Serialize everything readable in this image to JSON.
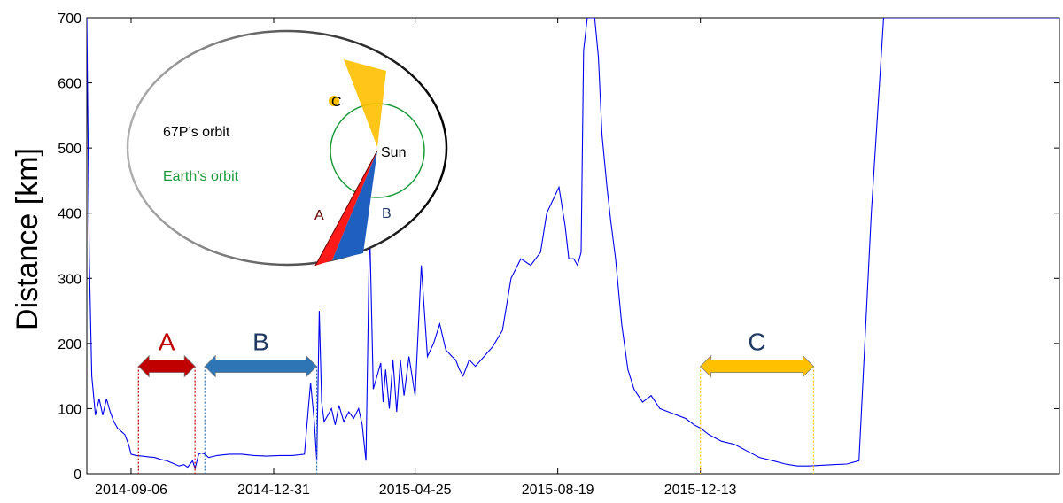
{
  "chart_data": {
    "type": "line",
    "title": "",
    "xlabel": "",
    "ylabel": "Distance [km]",
    "ylim": [
      0,
      700
    ],
    "xlim": [
      "2014-08-01",
      "2016-09-30"
    ],
    "yticks": [
      0,
      100,
      200,
      300,
      400,
      500,
      600,
      700
    ],
    "xticks": [
      "2014-09-06",
      "2014-12-31",
      "2015-04-25",
      "2015-08-19",
      "2015-12-13"
    ],
    "grid": false,
    "line_color": "#0000ee",
    "series": [
      {
        "values_x": [
          "2014-08-01",
          "2014-08-03",
          "2014-08-05",
          "2014-08-08",
          "2014-08-11",
          "2014-08-14",
          "2014-08-17",
          "2014-08-20",
          "2014-08-23",
          "2014-08-26",
          "2014-08-29",
          "2014-09-01",
          "2014-09-04",
          "2014-09-06",
          "2014-09-10",
          "2014-09-15",
          "2014-09-20",
          "2014-09-25",
          "2014-09-30",
          "2014-10-05",
          "2014-10-10",
          "2014-10-15",
          "2014-10-19",
          "2014-10-22",
          "2014-10-26",
          "2014-10-28",
          "2014-10-31",
          "2014-11-02",
          "2014-11-05",
          "2014-11-08",
          "2014-11-15",
          "2014-11-25",
          "2014-12-05",
          "2014-12-15",
          "2014-12-25",
          "2015-01-05",
          "2015-01-15",
          "2015-01-25",
          "2015-01-30",
          "2015-02-02",
          "2015-02-04",
          "2015-02-06",
          "2015-02-08",
          "2015-02-10",
          "2015-02-13",
          "2015-02-16",
          "2015-02-19",
          "2015-02-22",
          "2015-02-26",
          "2015-03-02",
          "2015-03-06",
          "2015-03-10",
          "2015-03-13",
          "2015-03-16",
          "2015-03-19",
          "2015-03-22",
          "2015-03-25",
          "2015-03-28",
          "2015-03-30",
          "2015-04-01",
          "2015-04-04",
          "2015-04-07",
          "2015-04-10",
          "2015-04-13",
          "2015-04-16",
          "2015-04-20",
          "2015-04-25",
          "2015-04-30",
          "2015-05-05",
          "2015-05-10",
          "2015-05-15",
          "2015-05-20",
          "2015-05-25",
          "2015-05-28",
          "2015-05-31",
          "2015-06-03",
          "2015-06-08",
          "2015-06-13",
          "2015-06-20",
          "2015-06-27",
          "2015-07-05",
          "2015-07-12",
          "2015-07-20",
          "2015-07-28",
          "2015-08-05",
          "2015-08-10",
          "2015-08-15",
          "2015-08-20",
          "2015-08-25",
          "2015-08-28",
          "2015-09-01",
          "2015-09-04",
          "2015-09-07",
          "2015-09-09",
          "2015-09-12",
          "2015-09-15",
          "2015-09-18",
          "2015-09-21",
          "2015-09-24",
          "2015-09-28",
          "2015-10-01",
          "2015-10-05",
          "2015-10-10",
          "2015-10-15",
          "2015-10-20",
          "2015-10-27",
          "2015-11-03",
          "2015-11-10",
          "2015-11-17",
          "2015-11-24",
          "2015-12-01",
          "2015-12-08",
          "2015-12-13",
          "2015-12-20",
          "2015-12-30",
          "2016-01-10",
          "2016-01-20",
          "2016-01-30",
          "2016-02-10",
          "2016-02-20",
          "2016-03-01",
          "2016-03-10",
          "2016-03-20",
          "2016-03-30",
          "2016-04-10",
          "2016-04-20",
          "2016-04-30",
          "2016-05-10",
          "2016-05-20",
          "2016-05-30",
          "2016-06-10",
          "2016-06-20",
          "2016-07-01",
          "2016-07-10",
          "2016-07-20",
          "2016-07-30",
          "2016-08-10",
          "2016-08-20",
          "2016-08-30",
          "2016-09-08",
          "2016-09-14",
          "2016-09-18",
          "2016-09-23",
          "2016-09-26",
          "2016-09-30"
        ],
        "values_y": [
          700,
          330,
          150,
          90,
          115,
          90,
          115,
          95,
          80,
          70,
          65,
          60,
          45,
          30,
          28,
          27,
          26,
          25,
          22,
          20,
          16,
          12,
          14,
          10,
          20,
          8,
          30,
          32,
          30,
          25,
          28,
          30,
          30,
          28,
          27,
          28,
          28,
          30,
          140,
          80,
          20,
          250,
          110,
          80,
          90,
          100,
          75,
          105,
          80,
          95,
          85,
          100,
          75,
          20,
          380,
          130,
          150,
          170,
          110,
          160,
          100,
          175,
          95,
          175,
          120,
          180,
          120,
          320,
          180,
          200,
          230,
          190,
          180,
          175,
          160,
          150,
          175,
          165,
          180,
          195,
          220,
          300,
          330,
          320,
          340,
          400,
          420,
          440,
          380,
          330,
          330,
          320,
          340,
          650,
          700,
          700,
          700,
          640,
          520,
          440,
          390,
          330,
          230,
          160,
          130,
          110,
          120,
          100,
          95,
          90,
          85,
          75,
          70,
          60,
          50,
          45,
          35,
          25,
          20,
          15,
          12,
          12,
          13,
          14,
          15,
          20,
          400,
          700,
          700,
          700,
          700,
          700,
          700,
          700,
          700,
          700,
          700,
          700,
          700,
          700,
          700,
          700,
          700,
          700,
          700
        ]
      }
    ],
    "ranges": [
      {
        "label": "A",
        "start": "2014-09-12",
        "end": "2014-10-28",
        "color": "#c00000"
      },
      {
        "label": "B",
        "start": "2014-11-05",
        "end": "2015-02-04",
        "color": "#2e75b6"
      },
      {
        "label": "C",
        "start": "2015-12-13",
        "end": "2016-03-14",
        "color": "#ffc000"
      }
    ],
    "inset": {
      "orbit_67p_label": "67P’s orbit",
      "earth_orbit_label": "Earth’s orbit",
      "sun_label": "Sun",
      "wedge_a_label": "A",
      "wedge_b_label": "B",
      "wedge_c_label": "C"
    }
  }
}
